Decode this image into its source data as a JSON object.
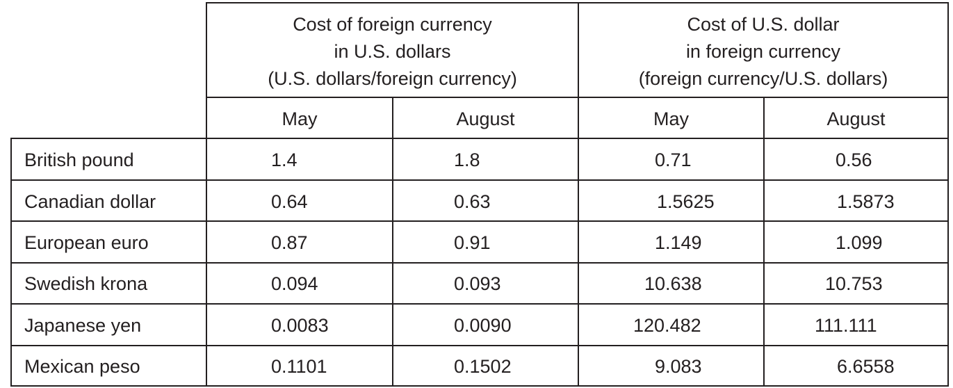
{
  "header": {
    "group1": [
      "Cost of foreign currency",
      "in U.S. dollars",
      "(U.S. dollars/foreign currency)"
    ],
    "group2": [
      "Cost of U.S. dollar",
      "in foreign currency",
      "(foreign currency/U.S. dollars)"
    ],
    "subheaders": [
      "May",
      "August",
      "May",
      "August"
    ]
  },
  "rows": [
    {
      "currency": "British pound",
      "values": [
        "1.4",
        "1.8",
        "0.71",
        "0.56"
      ]
    },
    {
      "currency": "Canadian dollar",
      "values": [
        "0.64",
        "0.63",
        "1.5625",
        "1.5873"
      ]
    },
    {
      "currency": "European euro",
      "values": [
        "0.87",
        "0.91",
        "1.149",
        "1.099"
      ]
    },
    {
      "currency": "Swedish krona",
      "values": [
        "0.094",
        "0.093",
        "10.638",
        "10.753"
      ]
    },
    {
      "currency": "Japanese yen",
      "values": [
        "0.0083",
        "0.0090",
        "120.482",
        "111.111"
      ]
    },
    {
      "currency": "Mexican peso",
      "values": [
        "0.1101",
        "0.1502",
        "9.083",
        "6.6558"
      ]
    }
  ]
}
